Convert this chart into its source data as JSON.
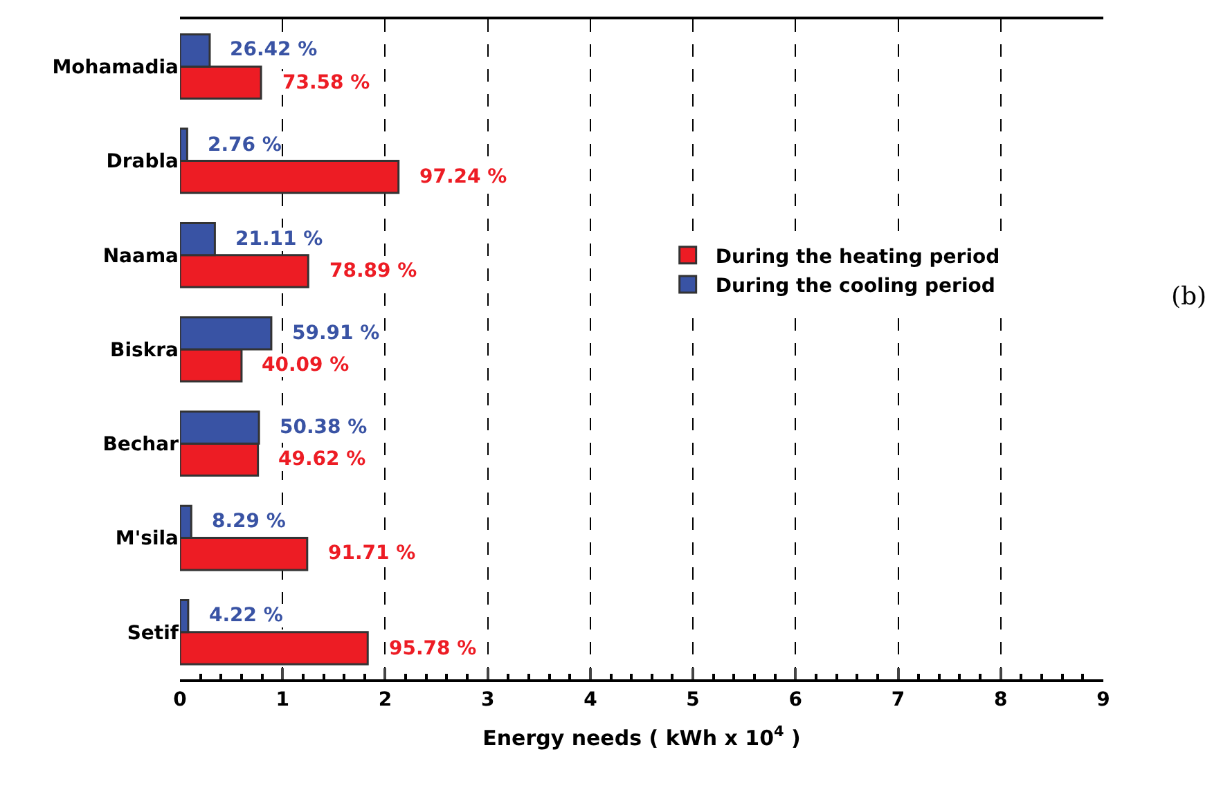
{
  "chart_data": {
    "type": "bar",
    "orientation": "horizontal",
    "xlabel": "Energy needs ( kWh x 10$^{4}$ )",
    "categories": [
      "Mohamadia",
      "Drabla",
      "Naama",
      "Biskra",
      "Bechar",
      "M'sila",
      "Setif"
    ],
    "series": [
      {
        "name": "During the heating period",
        "color": "#ed1c24",
        "values": [
          0.79,
          2.13,
          1.25,
          0.6,
          0.76,
          1.24,
          1.83
        ]
      },
      {
        "name": "During the cooling period",
        "color": "#3953a4",
        "values": [
          0.29,
          0.07,
          0.34,
          0.89,
          0.77,
          0.11,
          0.08
        ]
      }
    ],
    "xlim": [
      0,
      9
    ],
    "xticks": [
      0,
      1,
      2,
      3,
      4,
      5,
      6,
      7,
      8,
      9
    ],
    "grid": "x",
    "legend": "right",
    "annotations": [
      {
        "text": "73.58 %",
        "x": 0.79,
        "y": "Mohamadia"
      },
      {
        "text": "26.42 %",
        "x": 0.29,
        "y": "Mohamadia"
      },
      {
        "text": "97.24 %",
        "x": 2.13,
        "y": "Drabla"
      },
      {
        "text": "2.76 %",
        "x": 0.07,
        "y": "Drabla"
      },
      {
        "text": "78.89 %",
        "x": 1.25,
        "y": "Naama"
      },
      {
        "text": "21.11 %",
        "x": 0.34,
        "y": "Naama"
      },
      {
        "text": "40.09 %",
        "x": 0.6,
        "y": "Biskra"
      },
      {
        "text": "59.91 %",
        "x": 0.89,
        "y": "Biskra"
      },
      {
        "text": "49.62 %",
        "x": 0.76,
        "y": "Bechar"
      },
      {
        "text": "50.38 %",
        "x": 0.77,
        "y": "Bechar"
      },
      {
        "text": "91.71 %",
        "x": 1.24,
        "y": "M'sila"
      },
      {
        "text": "8.29 %",
        "x": 0.11,
        "y": "M'sila"
      },
      {
        "text": "95.78 %",
        "x": 1.83,
        "y": "Setif"
      },
      {
        "text": "4.22 %",
        "x": 0.08,
        "y": "Setif"
      },
      "(b)"
    ]
  }
}
